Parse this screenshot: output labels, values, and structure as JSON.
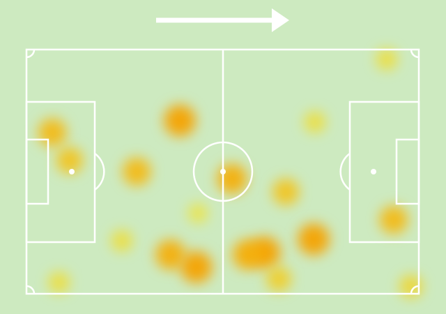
{
  "chart_data": {
    "type": "heatmap",
    "x": [
      39.1,
      6.6,
      11,
      28.1,
      52.4,
      66.1,
      73.2,
      60.7,
      56.3,
      36.7,
      43.3,
      93.6,
      73.5,
      91.8,
      8.3,
      64.3,
      98,
      24.3,
      43.7
    ],
    "y": [
      70.9,
      66,
      54.6,
      50,
      47.1,
      41.7,
      22.3,
      16.9,
      16,
      16,
      10.9,
      30.3,
      70.3,
      96,
      4.6,
      6,
      3,
      21.7,
      33
    ],
    "values": [
      0.9,
      0.7,
      0.6,
      0.7,
      0.8,
      0.6,
      0.9,
      0.9,
      0.8,
      0.8,
      0.9,
      0.7,
      0.3,
      0.3,
      0.3,
      0.5,
      0.4,
      0.3,
      0.2
    ],
    "xlim": [
      0,
      100
    ],
    "ylim": [
      0,
      100
    ],
    "colormap": [
      "#fff200",
      "#f59a00"
    ]
  }
}
